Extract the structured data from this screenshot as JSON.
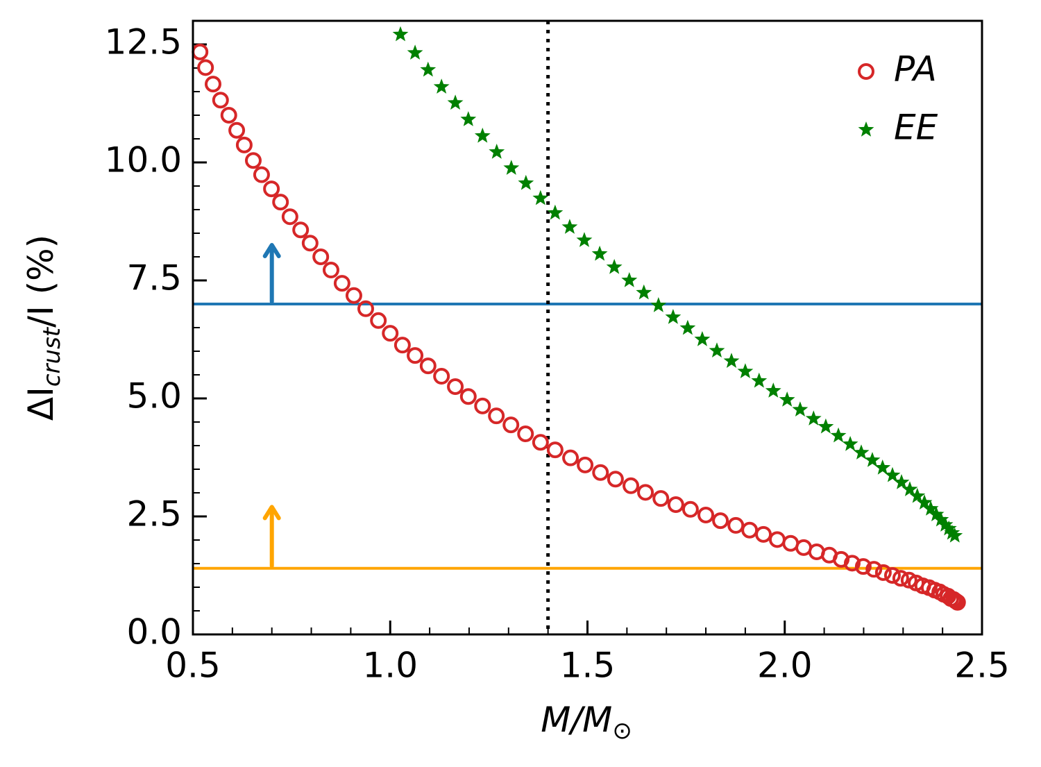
{
  "chart_data": {
    "type": "scatter",
    "x_label_parts": [
      "M/M",
      "⊙"
    ],
    "y_label_parts": [
      "ΔI",
      "crust",
      "/I (%)"
    ],
    "xlim": [
      0.5,
      2.5
    ],
    "ylim": [
      0,
      13
    ],
    "xticks": [
      0.5,
      {
        "value": 1,
        "label": "1.0"
      },
      1.5,
      {
        "value": 2,
        "label": "2.0"
      },
      2.5
    ],
    "yticks": [
      {
        "value": 0,
        "label": "0.0"
      },
      2.5,
      {
        "value": 5,
        "label": "5.0"
      },
      7.5,
      {
        "value": 10,
        "label": "10.0"
      },
      12.5
    ],
    "legend": "upper right",
    "series": [
      {
        "name": "PA",
        "color": "#d62728",
        "marker": "open-circle",
        "x": [
          0.518,
          0.532,
          0.551,
          0.57,
          0.591,
          0.611,
          0.63,
          0.653,
          0.674,
          0.699,
          0.722,
          0.746,
          0.773,
          0.797,
          0.824,
          0.85,
          0.878,
          0.908,
          0.938,
          0.97,
          1.0,
          1.031,
          1.063,
          1.096,
          1.13,
          1.165,
          1.198,
          1.234,
          1.269,
          1.306,
          1.343,
          1.381,
          1.418,
          1.457,
          1.494,
          1.533,
          1.571,
          1.61,
          1.647,
          1.686,
          1.724,
          1.761,
          1.8,
          1.837,
          1.876,
          1.911,
          1.946,
          1.981,
          2.015,
          2.048,
          2.081,
          2.113,
          2.143,
          2.171,
          2.199,
          2.226,
          2.25,
          2.273,
          2.294,
          2.315,
          2.333,
          2.35,
          2.366,
          2.38,
          2.393,
          2.403,
          2.414,
          2.421,
          2.428,
          2.433,
          2.438
        ],
        "values": [
          12.34,
          12.01,
          11.66,
          11.32,
          11.0,
          10.68,
          10.37,
          10.04,
          9.74,
          9.44,
          9.16,
          8.85,
          8.57,
          8.29,
          8.0,
          7.72,
          7.44,
          7.18,
          6.9,
          6.65,
          6.38,
          6.13,
          5.91,
          5.69,
          5.47,
          5.25,
          5.04,
          4.84,
          4.63,
          4.44,
          4.25,
          4.07,
          3.91,
          3.74,
          3.59,
          3.43,
          3.29,
          3.15,
          3.01,
          2.88,
          2.75,
          2.65,
          2.53,
          2.41,
          2.31,
          2.21,
          2.12,
          2.01,
          1.93,
          1.84,
          1.75,
          1.68,
          1.59,
          1.51,
          1.44,
          1.38,
          1.31,
          1.25,
          1.19,
          1.15,
          1.09,
          1.03,
          0.99,
          0.94,
          0.9,
          0.85,
          0.81,
          0.76,
          0.74,
          0.71,
          0.68
        ]
      },
      {
        "name": "EE",
        "color": "#008000",
        "marker": "star",
        "x": [
          1.026,
          1.063,
          1.096,
          1.13,
          1.165,
          1.198,
          1.234,
          1.27,
          1.307,
          1.344,
          1.381,
          1.418,
          1.455,
          1.492,
          1.531,
          1.568,
          1.606,
          1.643,
          1.68,
          1.717,
          1.754,
          1.791,
          1.828,
          1.865,
          1.9,
          1.935,
          1.971,
          2.006,
          2.039,
          2.073,
          2.104,
          2.136,
          2.166,
          2.194,
          2.222,
          2.248,
          2.273,
          2.296,
          2.317,
          2.336,
          2.354,
          2.37,
          2.384,
          2.396,
          2.407,
          2.416,
          2.424,
          2.431
        ],
        "values": [
          12.71,
          12.32,
          11.96,
          11.6,
          11.26,
          10.91,
          10.56,
          10.22,
          9.88,
          9.56,
          9.24,
          8.93,
          8.63,
          8.35,
          8.06,
          7.78,
          7.5,
          7.24,
          6.97,
          6.72,
          6.49,
          6.25,
          6.01,
          5.79,
          5.57,
          5.37,
          5.16,
          4.97,
          4.76,
          4.57,
          4.4,
          4.21,
          4.03,
          3.85,
          3.69,
          3.53,
          3.37,
          3.22,
          3.07,
          2.93,
          2.79,
          2.66,
          2.54,
          2.43,
          2.32,
          2.24,
          2.15,
          2.09
        ]
      }
    ],
    "hlines": [
      {
        "value": 7.0,
        "color": "#1f77b4"
      },
      {
        "value": 1.4,
        "color": "#ffa500"
      }
    ],
    "vlines": [
      {
        "value": 1.4,
        "color": "#000000",
        "style": "dotted"
      }
    ],
    "arrows": [
      {
        "x": 0.7,
        "y": [
          7.05,
          8.25
        ],
        "color": "#1f77b4"
      },
      {
        "x": 0.7,
        "y": [
          1.45,
          2.7
        ],
        "color": "#ffa500"
      }
    ]
  }
}
